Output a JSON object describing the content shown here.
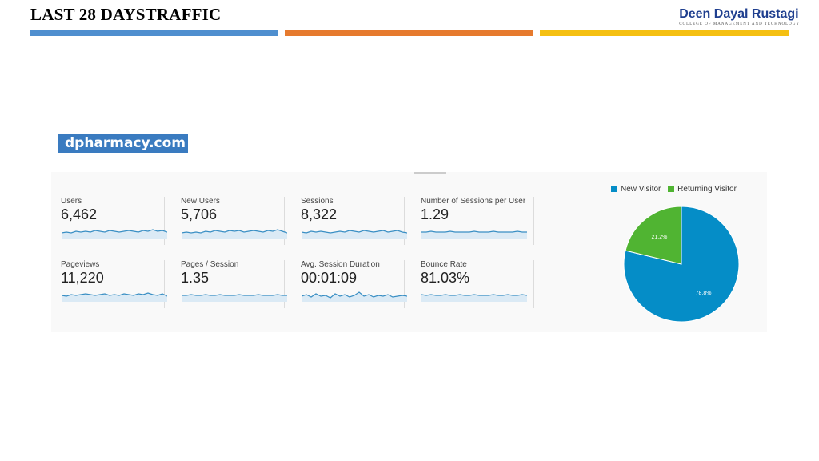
{
  "slide": {
    "title": "LAST 28 DAYSTRAFFIC",
    "logo_name": "Deen Dayal Rustagi",
    "logo_subtitle": "COLLEGE OF MANAGEMENT AND TECHNOLOGY",
    "bar_colors": [
      "#4f8fcf",
      "#e67a2e",
      "#f5c012"
    ]
  },
  "site_label": "dpharmacy.com",
  "metrics": [
    {
      "label": "Users",
      "value": "6,462"
    },
    {
      "label": "New Users",
      "value": "5,706"
    },
    {
      "label": "Sessions",
      "value": "8,322"
    },
    {
      "label": "Number of Sessions per User",
      "value": "1.29"
    },
    {
      "label": "Pageviews",
      "value": "11,220"
    },
    {
      "label": "Pages / Session",
      "value": "1.35"
    },
    {
      "label": "Avg. Session Duration",
      "value": "00:01:09"
    },
    {
      "label": "Bounce Rate",
      "value": "81.03%"
    }
  ],
  "sparkline_color": "#3a8fc4",
  "sparkline_fill": "#dbeaf5",
  "chart_data": {
    "type": "pie",
    "legend_position": "top",
    "series": [
      {
        "name": "New Visitor",
        "value": 78.8,
        "label": "78.8%",
        "color": "#058dc7"
      },
      {
        "name": "Returning Visitor",
        "value": 21.2,
        "label": "21.2%",
        "color": "#50b432"
      }
    ]
  }
}
